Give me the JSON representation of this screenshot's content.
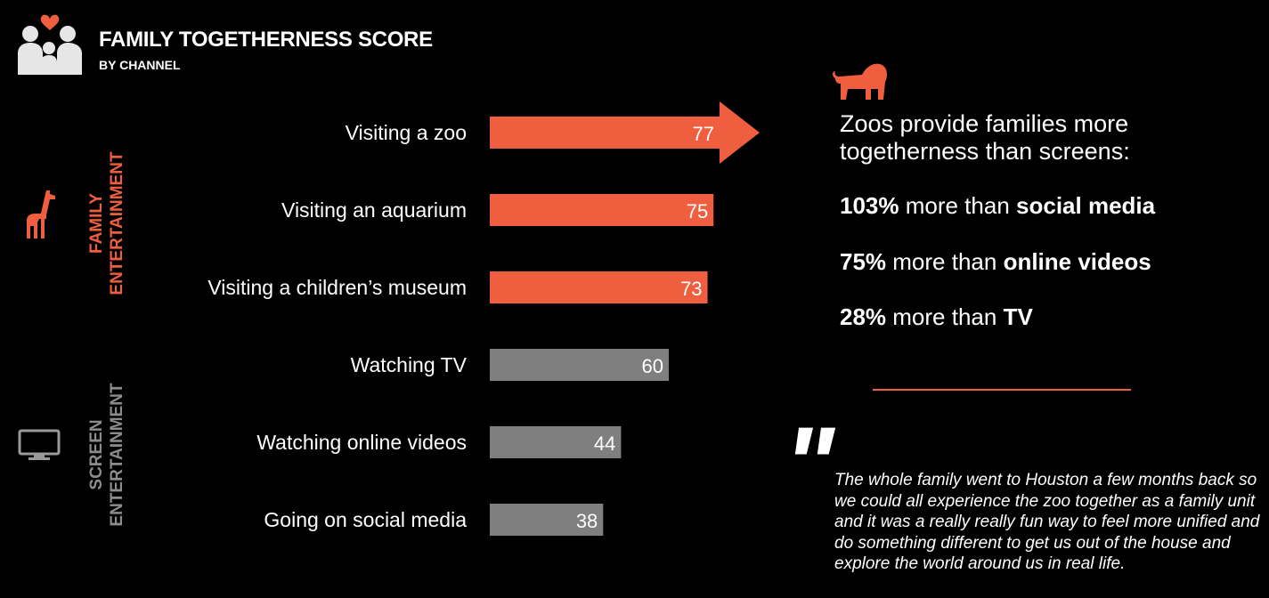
{
  "header": {
    "title": "FAMILY TOGETHERNESS SCORE",
    "subtitle": "BY CHANNEL"
  },
  "sections": {
    "family": "FAMILY\nENTERTAINMENT",
    "screen": "SCREEN\nENTERTAINMENT"
  },
  "colors": {
    "family": "#ef5f3f",
    "screen": "#7f7f7f",
    "background": "#000000"
  },
  "icons": {
    "header": "family-heart-icon",
    "family": "giraffe-icon",
    "screen": "tv-icon",
    "callout": "lion-icon"
  },
  "chart_data": {
    "type": "bar",
    "orientation": "horizontal",
    "title": "FAMILY TOGETHERNESS SCORE",
    "subtitle": "BY CHANNEL",
    "categories": [
      "Visiting a zoo",
      "Visiting an aquarium",
      "Visiting a children’s museum",
      "Watching TV",
      "Watching online videos",
      "Going on social media"
    ],
    "values": [
      77,
      75,
      73,
      60,
      44,
      38
    ],
    "groups": [
      "family",
      "family",
      "family",
      "screen",
      "screen",
      "screen"
    ],
    "highlight": "Visiting a zoo",
    "xlim": [
      0,
      100
    ],
    "grid": false
  },
  "callout": {
    "headline": "Zoos provide families more togetherness than screens:",
    "stats": [
      {
        "pct": "103%",
        "mid": " more than ",
        "target": "social media"
      },
      {
        "pct": "75%",
        "mid": " more than ",
        "target": "online videos"
      },
      {
        "pct": "28%",
        "mid": " more than ",
        "target": "TV"
      }
    ]
  },
  "quote": {
    "mark": "\"",
    "text": "The whole family went to Houston a few months back so we could all experience the zoo together as a family unit and it was a really really fun way to feel more unified and do something different to get us out of the house and explore the world around us in real life."
  }
}
